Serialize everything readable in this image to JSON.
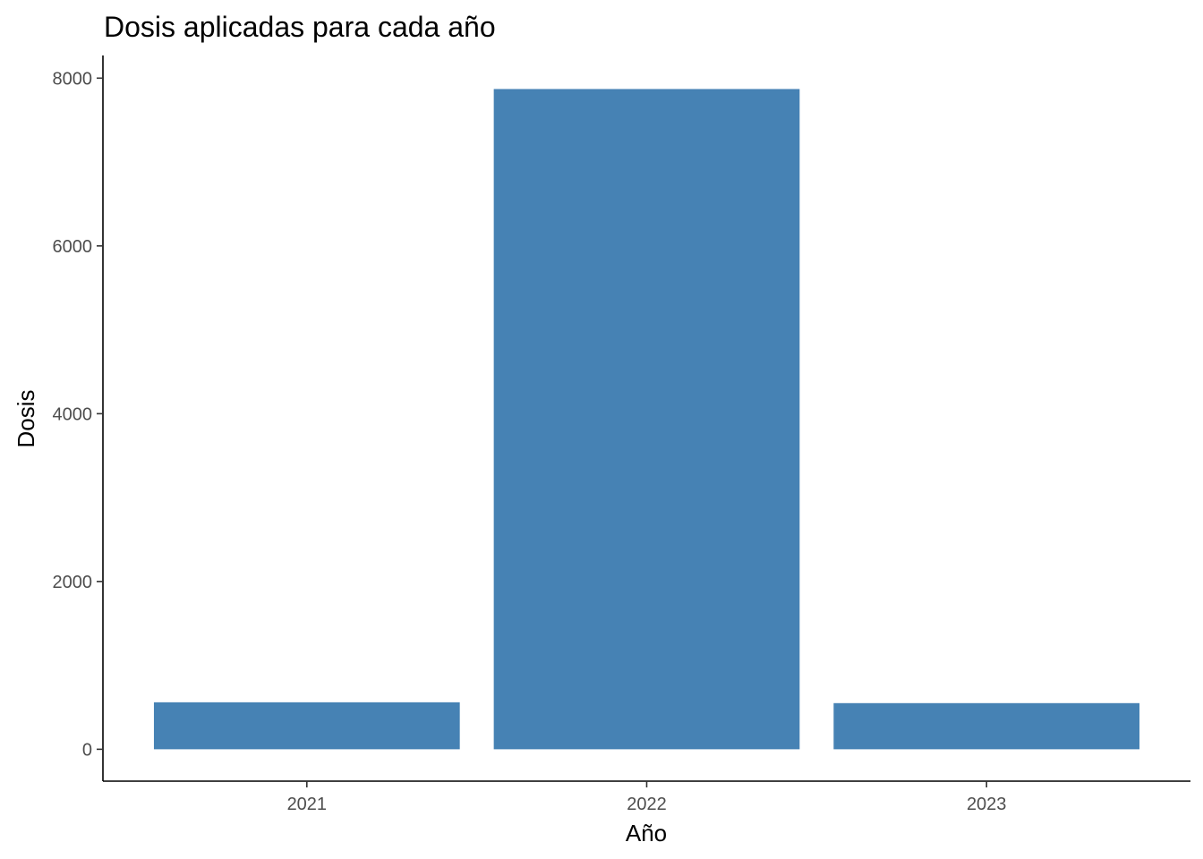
{
  "chart_data": {
    "type": "bar",
    "title": "Dosis aplicadas para cada año",
    "xlabel": "Año",
    "ylabel": "Dosis",
    "categories": [
      "2021",
      "2022",
      "2023"
    ],
    "values": [
      560,
      7870,
      550
    ],
    "ylim": [
      -380,
      8270
    ],
    "yticks": [
      0,
      2000,
      4000,
      6000,
      8000
    ],
    "ytick_labels": [
      "0",
      "2000",
      "4000",
      "6000",
      "8000"
    ],
    "grid": false,
    "legend": "none",
    "bar_color": "#4682B4"
  }
}
